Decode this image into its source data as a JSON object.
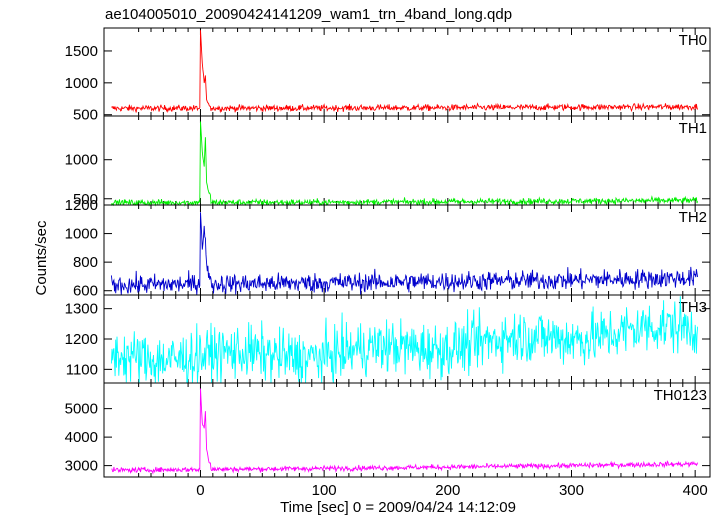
{
  "title": "ae104005010_20090424141209_wam1_trn_4band_long.qdp",
  "xlabel": "Time [sec] 0 = 2009/04/24 14:12:09",
  "ylabel": "Counts/sec",
  "chart_data": {
    "type": "line",
    "title": "ae104005010_20090424141209_wam1_trn_4band_long.qdp",
    "xlabel": "Time [sec] 0 = 2009/04/24 14:12:09",
    "ylabel": "Counts/sec",
    "xlim": [
      -78,
      412
    ],
    "xticks": [
      0,
      100,
      200,
      300,
      400
    ],
    "grid": false,
    "panels": [
      {
        "name": "TH0",
        "color": "#ff0000",
        "ylim": [
          480,
          1860
        ],
        "yticks": [
          500,
          1000,
          1500
        ],
        "baseline": [
          [
            -70,
            600
          ],
          [
            100,
            605
          ],
          [
            200,
            610
          ],
          [
            300,
            618
          ],
          [
            400,
            625
          ]
        ],
        "noise": 25,
        "burst": [
          [
            0,
            1800
          ],
          [
            1.5,
            1300
          ],
          [
            3,
            1000
          ],
          [
            4,
            1100
          ],
          [
            5,
            720
          ],
          [
            7,
            640
          ]
        ],
        "trend": "flat"
      },
      {
        "name": "TH1",
        "color": "#00ee00",
        "ylim": [
          420,
          1560
        ],
        "yticks": [
          500,
          1000
        ],
        "baseline": [
          [
            -70,
            450
          ],
          [
            100,
            455
          ],
          [
            200,
            462
          ],
          [
            300,
            470
          ],
          [
            400,
            480
          ]
        ],
        "noise": 20,
        "burst": [
          [
            0,
            1500
          ],
          [
            1.5,
            1100
          ],
          [
            3,
            900
          ],
          [
            4,
            1300
          ],
          [
            5,
            700
          ],
          [
            7,
            560
          ]
        ],
        "trend": "flat"
      },
      {
        "name": "TH2",
        "color": "#0000cc",
        "ylim": [
          570,
          1200
        ],
        "yticks": [
          600,
          800,
          1000,
          1200
        ],
        "baseline": [
          [
            -70,
            640
          ],
          [
            100,
            655
          ],
          [
            200,
            665
          ],
          [
            300,
            675
          ],
          [
            400,
            690
          ]
        ],
        "noise": 35,
        "burst": [
          [
            0,
            1180
          ],
          [
            1.5,
            900
          ],
          [
            3,
            1030
          ],
          [
            4,
            950
          ],
          [
            5,
            780
          ],
          [
            7,
            700
          ]
        ],
        "trend": "flat"
      },
      {
        "name": "TH3",
        "color": "#00ffff",
        "ylim": [
          1055,
          1345
        ],
        "yticks": [
          1100,
          1200,
          1300
        ],
        "baseline": [
          [
            -70,
            1140
          ],
          [
            100,
            1150
          ],
          [
            200,
            1180
          ],
          [
            300,
            1210
          ],
          [
            400,
            1240
          ]
        ],
        "noise": 45,
        "burst": [],
        "trend": "rising"
      },
      {
        "name": "TH0123",
        "color": "#ff00ff",
        "ylim": [
          2600,
          5900
        ],
        "yticks": [
          3000,
          4000,
          5000
        ],
        "baseline": [
          [
            -70,
            2840
          ],
          [
            100,
            2900
          ],
          [
            200,
            2950
          ],
          [
            300,
            3000
          ],
          [
            400,
            3060
          ]
        ],
        "noise": 45,
        "burst": [
          [
            0,
            5700
          ],
          [
            1.5,
            4500
          ],
          [
            3,
            4300
          ],
          [
            4,
            4900
          ],
          [
            5,
            3600
          ],
          [
            7,
            3100
          ]
        ],
        "trend": "flat"
      }
    ]
  }
}
